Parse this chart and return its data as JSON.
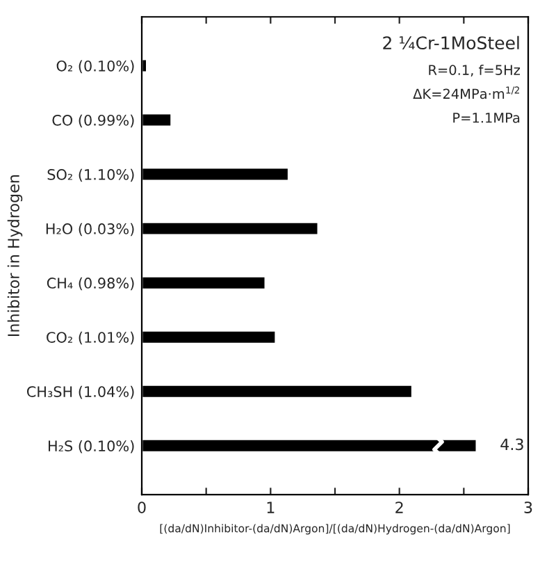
{
  "chart_data": {
    "type": "bar",
    "orientation": "horizontal",
    "categories": [
      "O₂ (0.10%)",
      "CO (0.99%)",
      "SO₂ (1.10%)",
      "H₂O (0.03%)",
      "CH₄ (0.98%)",
      "CO₂ (1.01%)",
      "CH₃SH (1.04%)",
      "H₂S (0.10%)"
    ],
    "values": [
      0.04,
      0.23,
      1.14,
      1.37,
      0.96,
      1.04,
      2.1,
      2.6
    ],
    "color": "#000000",
    "xlabel": "[(da/dN)Inhibitor-(da/dN)Argon]/[(da/dN)Hydrogen-(da/dN)Argon]",
    "ylabel": "Inhibitor in Hydrogen",
    "xlim": [
      0,
      3
    ],
    "xticks": [
      0,
      {
        "value": 0.5,
        "label": null
      },
      1,
      {
        "value": 1.5,
        "label": null
      },
      2,
      {
        "value": 2.5,
        "label": null
      },
      3
    ],
    "annotations": [
      "2 ¼Cr-1MoSteel",
      "R=0.1, f=5Hz",
      "ΔK=24MPa·m$^{1/2}$",
      "P=1.1MPa",
      {
        "text": "4.3",
        "x": 2.6,
        "y": "H₂S (0.10%)"
      }
    ],
    "grid": false,
    "legend": false
  }
}
